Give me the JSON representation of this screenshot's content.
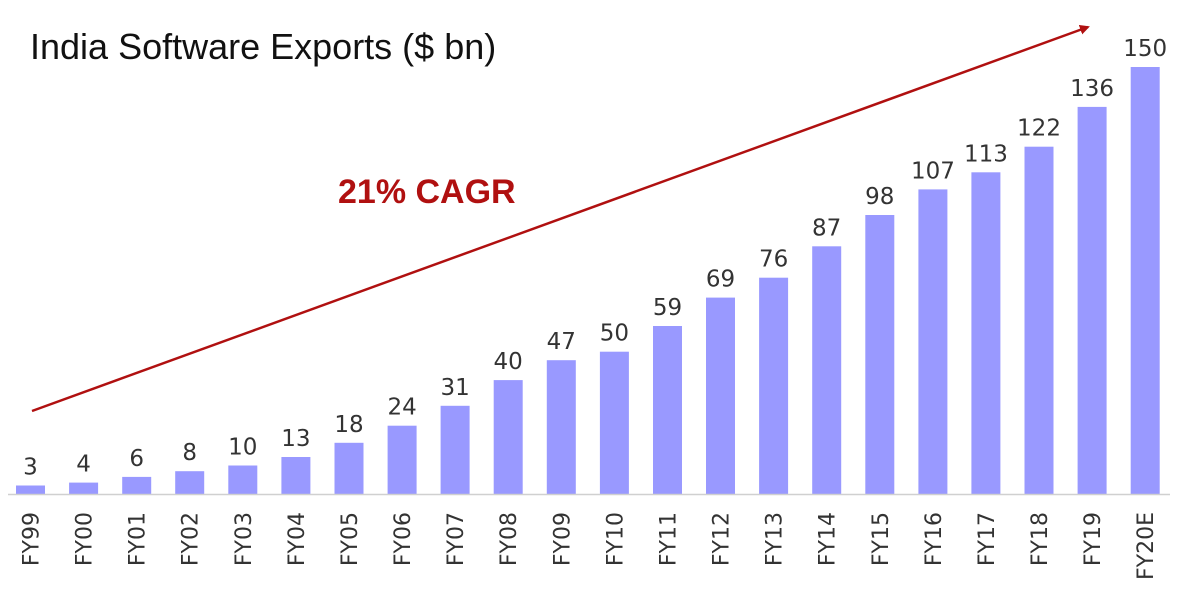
{
  "colors": {
    "bar": "#9999FF",
    "arrow": "#B01010",
    "axis": "#D0D0D0",
    "text": "#333333"
  },
  "chart_data": {
    "type": "bar",
    "title": "India Software Exports ($ bn)",
    "xlabel": "",
    "ylabel": "",
    "ylim": [
      0,
      150
    ],
    "grid": false,
    "categories": [
      "FY99",
      "FY00",
      "FY01",
      "FY02",
      "FY03",
      "FY04",
      "FY05",
      "FY06",
      "FY07",
      "FY08",
      "FY09",
      "FY10",
      "FY11",
      "FY12",
      "FY13",
      "FY14",
      "FY15",
      "FY16",
      "FY17",
      "FY18",
      "FY19",
      "FY20E"
    ],
    "values": [
      3,
      4,
      6,
      8,
      10,
      13,
      18,
      24,
      31,
      40,
      47,
      50,
      59,
      69,
      76,
      87,
      98,
      107,
      113,
      122,
      136,
      150
    ],
    "tick_rotation": -90,
    "annotations": [
      {
        "text": "21% CAGR",
        "kind": "trend-arrow"
      }
    ]
  }
}
